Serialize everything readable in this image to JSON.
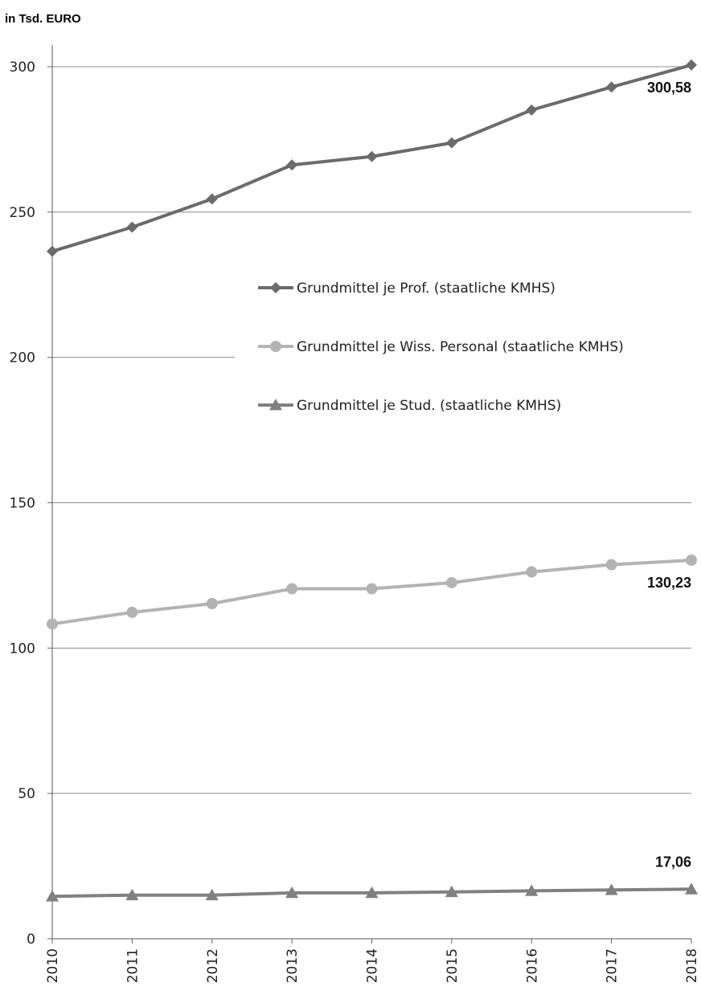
{
  "chart_data": {
    "type": "line",
    "unit_label": "in Tsd. EURO",
    "title": "",
    "xlabel": "",
    "ylabel": "",
    "x": [
      "2010",
      "2011",
      "2012",
      "2013",
      "2014",
      "2015",
      "2016",
      "2017",
      "2018"
    ],
    "ylim": [
      0,
      300
    ],
    "yticks": [
      0,
      50,
      100,
      150,
      200,
      250,
      300
    ],
    "grid": "horizontal",
    "legend_position": "center-right",
    "series": [
      {
        "name": "Grundmittel je Prof. (staatliche KMHS)",
        "values": [
          236.5,
          244.8,
          254.5,
          266.2,
          269.1,
          273.8,
          285.1,
          293.0,
          300.58
        ],
        "marker": "diamond",
        "color": "#6b6b6b",
        "end_label": "300,58"
      },
      {
        "name": "Grundmittel je Wiss. Personal (staatliche KMHS)",
        "values": [
          108.3,
          112.3,
          115.3,
          120.4,
          120.4,
          122.5,
          126.2,
          128.7,
          130.23
        ],
        "marker": "circle",
        "color": "#b3b3b3",
        "end_label": "130,23"
      },
      {
        "name": "Grundmittel je Stud. (staatliche KMHS)",
        "values": [
          14.6,
          15.0,
          15.0,
          15.8,
          15.8,
          16.1,
          16.5,
          16.8,
          17.06
        ],
        "marker": "triangle",
        "color": "#808080",
        "end_label": "17,06"
      }
    ]
  }
}
